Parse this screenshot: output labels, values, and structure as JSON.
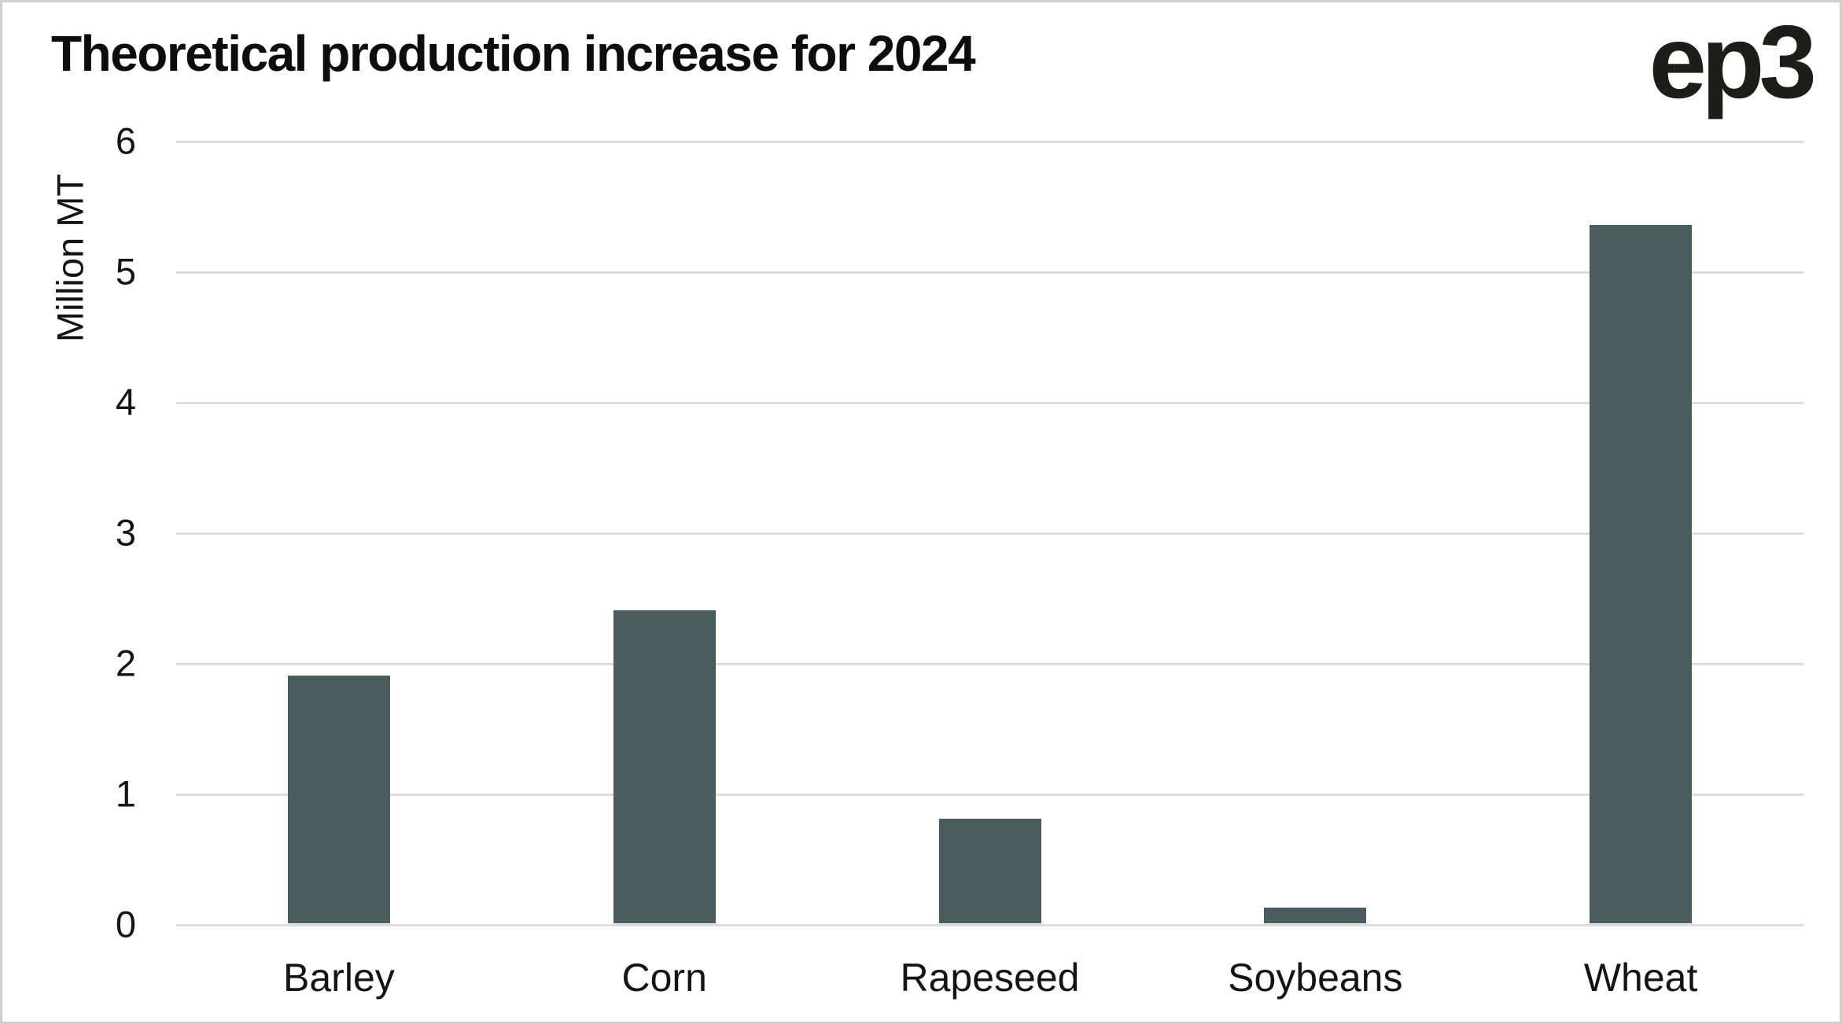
{
  "logo": {
    "text": "ep3"
  },
  "chart_data": {
    "type": "bar",
    "title": "Theoretical production increase for 2024",
    "xlabel": "",
    "ylabel": "Million MT",
    "categories": [
      "Barley",
      "Corn",
      "Rapeseed",
      "Soybeans",
      "Wheat"
    ],
    "values": [
      1.9,
      2.4,
      0.8,
      0.12,
      5.35
    ],
    "ylim": [
      0,
      6
    ],
    "yticks": [
      0,
      1,
      2,
      3,
      4,
      5,
      6
    ],
    "grid": true,
    "legend_position": "none",
    "bar_color": "#4b5c5f",
    "gridline_color": "#dcdcdc",
    "background_color": "#ffffff"
  }
}
